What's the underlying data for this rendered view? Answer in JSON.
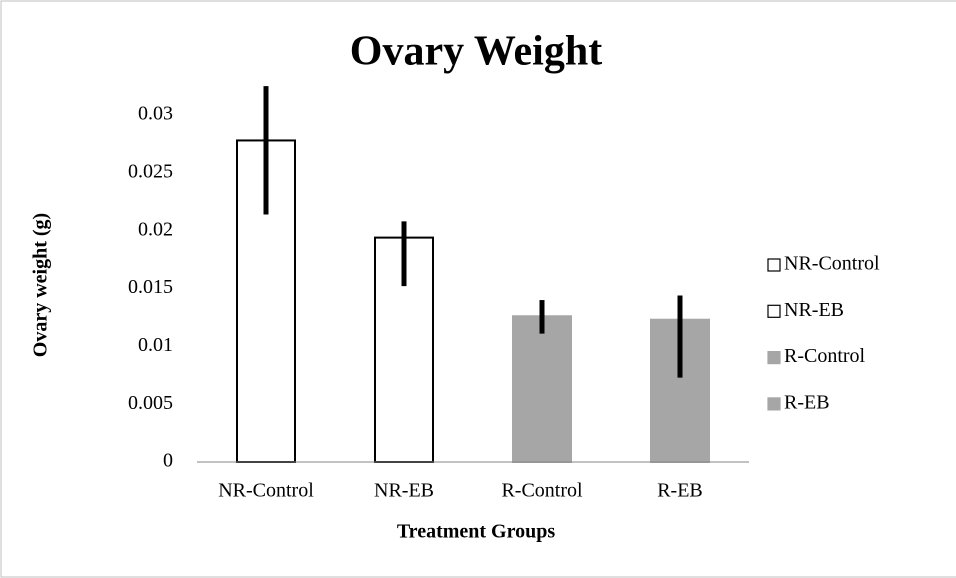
{
  "chart_data": {
    "type": "bar",
    "title": "Ovary Weight",
    "x_label": "Treatment Groups",
    "y_label": "Ovary weight (g)",
    "categories": [
      "NR-Control",
      "NR-EB",
      "R-Control",
      "R-EB"
    ],
    "values": [
      0.0278,
      0.0194,
      0.0126,
      0.0123
    ],
    "errors": [
      [
        0.0064,
        0.0047
      ],
      [
        0.0042,
        0.0014
      ],
      [
        0.0015,
        0.0014
      ],
      [
        0.005,
        0.0021
      ]
    ],
    "colors": [
      "#ffffff",
      "#ffffff",
      "#a6a6a6",
      "#a6a6a6"
    ],
    "edgecolors": [
      "#000000",
      "#000000",
      "#a6a6a6",
      "#a6a6a6"
    ],
    "ylim": [
      0,
      0.03
    ],
    "yticks": [
      0,
      0.005,
      0.01,
      0.015,
      0.02,
      0.025,
      0.03
    ],
    "legend": "right"
  }
}
